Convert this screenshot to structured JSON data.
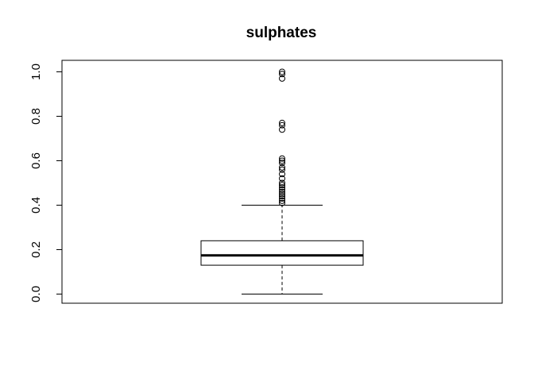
{
  "chart_data": {
    "type": "boxplot",
    "title": "sulphates",
    "xlabel": "",
    "ylabel": "",
    "ylim": [
      -0.04,
      1.05
    ],
    "y_ticks": [
      0.0,
      0.2,
      0.4,
      0.6,
      0.8,
      1.0
    ],
    "y_tick_labels": [
      "0.0",
      "0.2",
      "0.4",
      "0.6",
      "0.8",
      "1.0"
    ],
    "box": {
      "min": 0.0,
      "q1": 0.13,
      "median": 0.174,
      "q3": 0.24,
      "whisker_high": 0.4
    },
    "outliers": [
      1.0,
      0.99,
      0.97,
      0.77,
      0.76,
      0.74,
      0.61,
      0.6,
      0.59,
      0.57,
      0.56,
      0.54,
      0.52,
      0.5,
      0.49,
      0.48,
      0.47,
      0.46,
      0.45,
      0.44,
      0.43,
      0.42,
      0.41
    ],
    "grid": false,
    "legend": "none"
  }
}
